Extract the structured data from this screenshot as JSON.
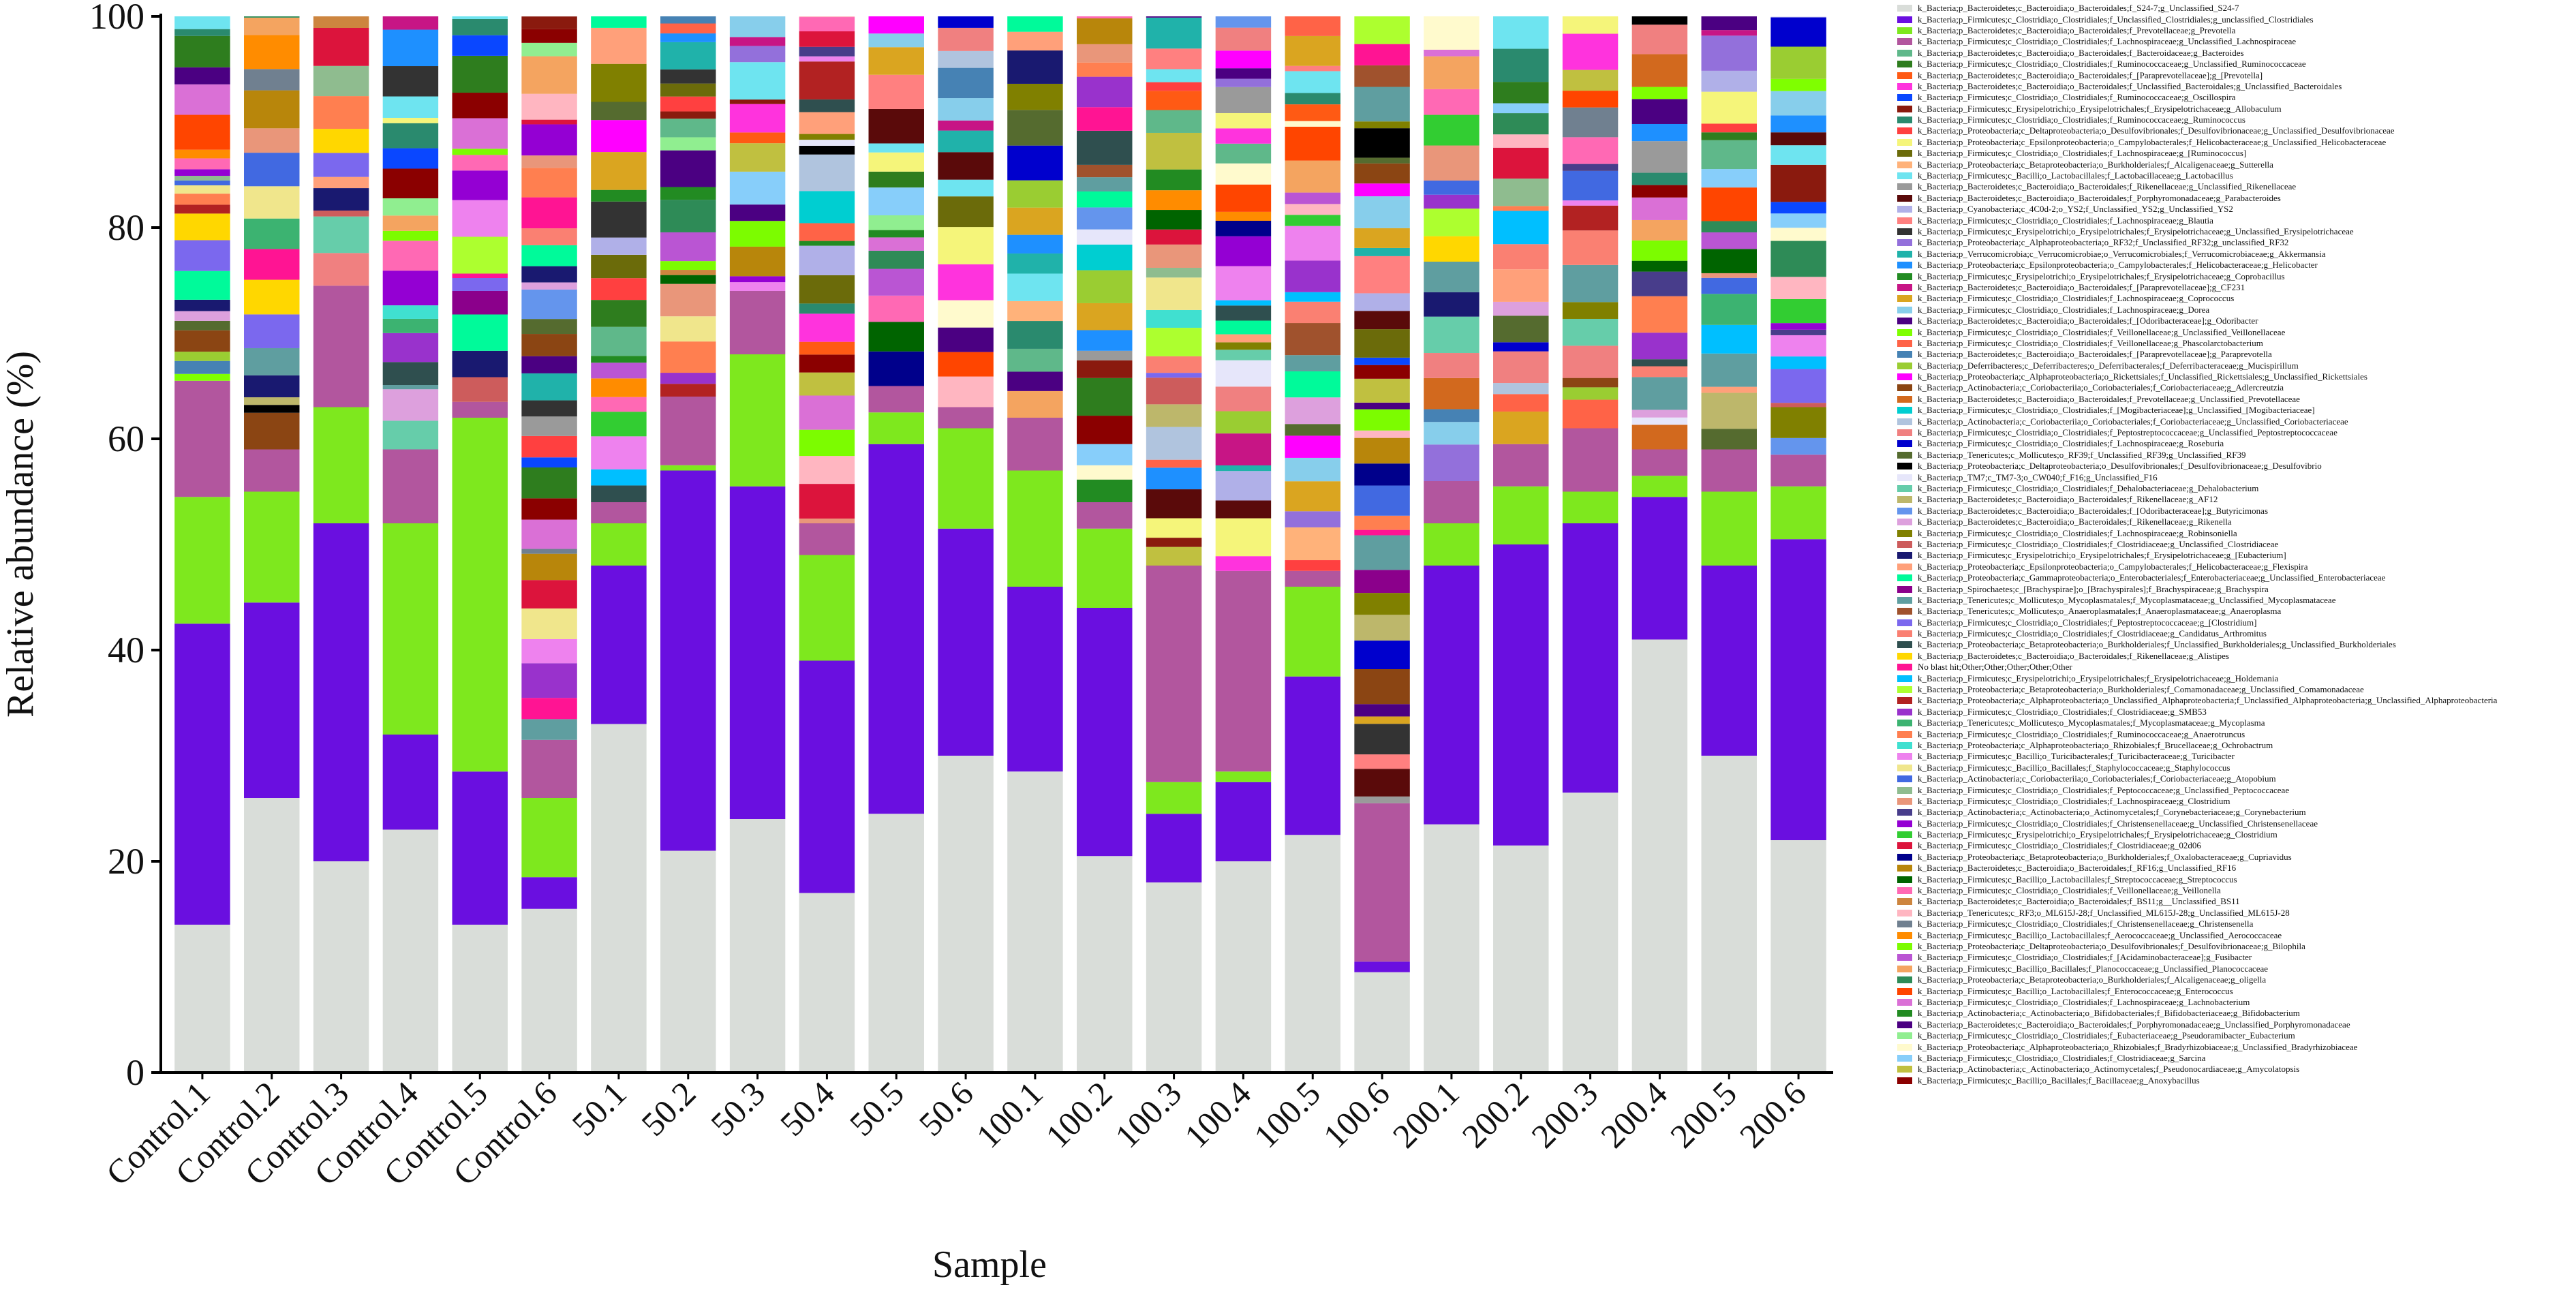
{
  "chart_data": {
    "type": "bar",
    "stacked": true,
    "xlabel": "Sample",
    "ylabel": "Relative abundance (%)",
    "ylim": [
      0,
      100
    ],
    "yticks": [
      0,
      20,
      40,
      60,
      80,
      100
    ],
    "categories": [
      "Control.1",
      "Control.2",
      "Control.3",
      "Control.4",
      "Control.5",
      "Control.6",
      "50.1",
      "50.2",
      "50.3",
      "50.4",
      "50.5",
      "50.6",
      "100.1",
      "100.2",
      "100.3",
      "100.4",
      "100.5",
      "100.6",
      "200.1",
      "200.2",
      "200.3",
      "200.4",
      "200.5",
      "200.6"
    ],
    "legend_position": "right",
    "major_series": [
      {
        "name": "k_Bacteria;p_Bacteroidetes;c_Bacteroidia;o_Bacteroidales;f_S24-7;g_Unclassified_S24-7",
        "color": "#d9ddd9",
        "values": [
          14,
          26,
          20,
          23,
          14,
          15.5,
          33,
          21,
          24,
          17,
          24.5,
          30,
          28.5,
          20.5,
          18,
          20,
          22.5,
          9.5,
          23.5,
          21.5,
          26.5,
          41,
          30,
          22
        ]
      },
      {
        "name": "k_Bacteria;p_Firmicutes;c_Clostridia;o_Clostridiales;f_Unclassified_Clostridiales;g_unclassified_Clostridiales",
        "color": "#6a0fe0",
        "values": [
          28.5,
          18.5,
          32,
          9,
          14.5,
          3,
          15,
          36,
          31.5,
          22,
          35,
          21.5,
          17.5,
          23.5,
          6.5,
          7.5,
          15,
          1,
          24.5,
          28.5,
          25.5,
          13.5,
          18,
          28.5
        ]
      },
      {
        "name": "k_Bacteria;p_Bacteroidetes;c_Bacteroidia;o_Bacteroidales;f_Prevotellaceae;g_Prevotella",
        "color": "#7ee81e",
        "values": [
          12,
          10.5,
          11,
          20,
          33.5,
          7.5,
          4,
          0.5,
          12.5,
          10,
          3,
          9.5,
          11,
          7.5,
          3,
          1,
          8.5,
          0,
          4,
          5.5,
          3,
          2,
          7,
          5
        ]
      },
      {
        "name": "k_Bacteria;p_Firmicutes;c_Clostridia;o_Clostridiales;f_Lachnospiraceae;g_Unclassified_Lachnospiraceae",
        "color": "#b2569e",
        "values": [
          11,
          4,
          11.5,
          7,
          1.5,
          5.5,
          2,
          6.5,
          6,
          3,
          2.5,
          2,
          5,
          2.5,
          20.5,
          19,
          1.5,
          15,
          4,
          4,
          6,
          2.5,
          4,
          3
        ]
      }
    ],
    "minor_series_note": "remaining taxa fill each bar to 100%",
    "legend_entries": [
      {
        "label": "k_Bacteria;p_Bacteroidetes;c_Bacteroidia;o_Bacteroidales;f_S24-7;g_Unclassified_S24-7",
        "color": "#d9ddd9"
      },
      {
        "label": "k_Bacteria;p_Firmicutes;c_Clostridia;o_Clostridiales;f_Unclassified_Clostridiales;g_unclassified_Clostridiales",
        "color": "#6a0fe0"
      },
      {
        "label": "k_Bacteria;p_Bacteroidetes;c_Bacteroidia;o_Bacteroidales;f_Prevotellaceae;g_Prevotella",
        "color": "#7ee81e"
      },
      {
        "label": "k_Bacteria;p_Firmicutes;c_Clostridia;o_Clostridiales;f_Lachnospiraceae;g_Unclassified_Lachnospiraceae",
        "color": "#b2569e"
      },
      {
        "label": "k_Bacteria;p_Bacteroidetes;c_Bacteroidia;o_Bacteroidales;f_Bacteroidaceae;g_Bacteroides",
        "color": "#5fb88a"
      },
      {
        "label": "k_Bacteria;p_Firmicutes;c_Clostridia;o_Clostridiales;f_Ruminococcaceae;g_Unclassified_Ruminococcaceae",
        "color": "#2e7d1e"
      },
      {
        "label": "k_Bacteria;p_Bacteroidetes;c_Bacteroidia;o_Bacteroidales;f_[Paraprevotellaceae];g_[Prevotella]",
        "color": "#ff5a14"
      },
      {
        "label": "k_Bacteria;p_Bacteroidetes;c_Bacteroidia;o_Bacteroidales;f_Unclassified_Bacteroidales;g_Unclassified_Bacteroidales",
        "color": "#ff33dd"
      },
      {
        "label": "k_Bacteria;p_Firmicutes;c_Clostridia;o_Clostridiales;f_Ruminococcaceae;g_Oscillospira",
        "color": "#0a47ff"
      },
      {
        "label": "k_Bacteria;p_Firmicutes;c_Erysipelotrichi;o_Erysipelotrichales;f_Erysipelotrichaceae;g_Allobaculum",
        "color": "#8a1a0e"
      },
      {
        "label": "k_Bacteria;p_Firmicutes;c_Clostridia;o_Clostridiales;f_Ruminococcaceae;g_Ruminococcus",
        "color": "#2a8a6e"
      },
      {
        "label": "k_Bacteria;p_Proteobacteria;c_Deltaproteobacteria;o_Desulfovibrionales;f_Desulfovibrionaceae;g_Unclassified_Desulfovibrionaceae",
        "color": "#ff4040"
      },
      {
        "label": "k_Bacteria;p_Proteobacteria;c_Epsilonproteobacteria;o_Campylobacterales;f_Helicobacteraceae;g_Unclassified_Helicobacteraceae",
        "color": "#f5f57a"
      },
      {
        "label": "k_Bacteria;p_Firmicutes;c_Clostridia;o_Clostridiales;f_Lachnospiraceae;g_[Ruminococcus]",
        "color": "#6b6b0a"
      },
      {
        "label": "k_Bacteria;p_Proteobacteria;c_Betaproteobacteria;o_Burkholderiales;f_Alcaligenaceae;g_Sutterella",
        "color": "#ffb27a"
      },
      {
        "label": "k_Bacteria;p_Firmicutes;c_Bacilli;o_Lactobacillales;f_Lactobacillaceae;g_Lactobacillus",
        "color": "#6ee4f0"
      },
      {
        "label": "k_Bacteria;p_Bacteroidetes;c_Bacteroidia;o_Bacteroidales;f_Rikenellaceae;g_Unclassified_Rikenellaceae",
        "color": "#9a9a9a"
      },
      {
        "label": "k_Bacteria;p_Bacteroidetes;c_Bacteroidia;o_Bacteroidales;f_Porphyromonadaceae;g_Parabacteroides",
        "color": "#5a0a0a"
      },
      {
        "label": "k_Bacteria;p_Cyanobacteria;c_4C0d-2;o_YS2;f_Unclassified_YS2;g_Unclassified_YS2",
        "color": "#b0b0e8"
      },
      {
        "label": "k_Bacteria;p_Firmicutes;c_Clostridia;o_Clostridiales;f_Lachnospiraceae;g_Blautia",
        "color": "#ff8080"
      },
      {
        "label": "k_Bacteria;p_Firmicutes;c_Erysipelotrichi;o_Erysipelotrichales;f_Erysipelotrichaceae;g_Unclassified_Erysipelotrichaceae",
        "color": "#333333"
      },
      {
        "label": "k_Bacteria;p_Proteobacteria;c_Alphaproteobacteria;o_RF32;f_Unclassified_RF32;g_unclassified_RF32",
        "color": "#9370db"
      },
      {
        "label": "k_Bacteria;p_Verrucomicrobia;c_Verrucomicrobiae;o_Verrucomicrobiales;f_Verrucomicrobiaceae;g_Akkermansia",
        "color": "#20b2aa"
      },
      {
        "label": "k_Bacteria;p_Proteobacteria;c_Epsilonproteobacteria;o_Campylobacterales;f_Helicobacteraceae;g_Helicobacter",
        "color": "#1e90ff"
      },
      {
        "label": "k_Bacteria;p_Firmicutes;c_Erysipelotrichi;o_Erysipelotrichales;f_Erysipelotrichaceae;g_Coprobacillus",
        "color": "#228b22"
      },
      {
        "label": "k_Bacteria;p_Bacteroidetes;c_Bacteroidia;o_Bacteroidales;f_[Paraprevotellaceae];g_CF231",
        "color": "#c71585"
      },
      {
        "label": "k_Bacteria;p_Firmicutes;c_Clostridia;o_Clostridiales;f_Lachnospiraceae;g_Coprococcus",
        "color": "#daa520"
      },
      {
        "label": "k_Bacteria;p_Firmicutes;c_Clostridia;o_Clostridiales;f_Lachnospiraceae;g_Dorea",
        "color": "#87ceeb"
      },
      {
        "label": "k_Bacteria;p_Bacteroidetes;c_Bacteroidia;o_Bacteroidales;f_[Odoribacteraceae];g_Odoribacter",
        "color": "#4b0082"
      },
      {
        "label": "k_Bacteria;p_Firmicutes;c_Clostridia;o_Clostridiales;f_Veillonellaceae;g_Unclassified_Veillonellaceae",
        "color": "#7fff00"
      },
      {
        "label": "k_Bacteria;p_Firmicutes;c_Clostridia;o_Clostridiales;f_Veillonellaceae;g_Phascolarctobacterium",
        "color": "#ff6347"
      },
      {
        "label": "k_Bacteria;p_Bacteroidetes;c_Bacteroidia;o_Bacteroidales;f_[Paraprevotellaceae];g_Paraprevotella",
        "color": "#4682b4"
      },
      {
        "label": "k_Bacteria;p_Deferribacteres;c_Deferribacteres;o_Deferribacterales;f_Deferribacteraceae;g_Mucispirillum",
        "color": "#9acd32"
      },
      {
        "label": "k_Bacteria;p_Proteobacteria;c_Alphaproteobacteria;o_Rickettsiales;f_Unclassified_Rickettsiales;g_Unclassified_Rickettsiales",
        "color": "#ff00ff"
      },
      {
        "label": "k_Bacteria;p_Actinobacteria;c_Coriobacteriia;o_Coriobacteriales;f_Coriobacteriaceae;g_Adlercreutzia",
        "color": "#8b4513"
      },
      {
        "label": "k_Bacteria;p_Bacteroidetes;c_Bacteroidia;o_Bacteroidales;f_Prevotellaceae;g_Unclassified_Prevotellaceae",
        "color": "#d2691e"
      },
      {
        "label": "k_Bacteria;p_Firmicutes;c_Clostridia;o_Clostridiales;f_[Mogibacteriaceae];g_Unclassified_[Mogibacteriaceae]",
        "color": "#00ced1"
      },
      {
        "label": "k_Bacteria;p_Actinobacteria;c_Coriobacteriia;o_Coriobacteriales;f_Coriobacteriaceae;g_Unclassified_Coriobacteriaceae",
        "color": "#b0c4de"
      },
      {
        "label": "k_Bacteria;p_Firmicutes;c_Clostridia;o_Clostridiales;f_Peptostreptococcaceae;g_Unclassified_Peptostreptococcaceae",
        "color": "#f08080"
      },
      {
        "label": "k_Bacteria;p_Firmicutes;c_Clostridia;o_Clostridiales;f_Lachnospiraceae;g_Roseburia",
        "color": "#0000cd"
      },
      {
        "label": "k_Bacteria;p_Tenericutes;c_Mollicutes;o_RF39;f_Unclassified_RF39;g_Unclassified_RF39",
        "color": "#556b2f"
      },
      {
        "label": "k_Bacteria;p_Proteobacteria;c_Deltaproteobacteria;o_Desulfovibrionales;f_Desulfovibrionaceae;g_Desulfovibrio",
        "color": "#000000"
      },
      {
        "label": "k_Bacteria;p_TM7;c_TM7-3;o_CW040;f_F16;g_Unclassified_F16",
        "color": "#e6e6fa"
      },
      {
        "label": "k_Bacteria;p_Firmicutes;c_Clostridia;o_Clostridiales;f_Dehalobacteriaceae;g_Dehalobacterium",
        "color": "#66cdaa"
      },
      {
        "label": "k_Bacteria;p_Bacteroidetes;c_Bacteroidia;o_Bacteroidales;f_Rikenellaceae;g_AF12",
        "color": "#bdb76b"
      },
      {
        "label": "k_Bacteria;p_Bacteroidetes;c_Bacteroidia;o_Bacteroidales;f_[Odoribacteraceae];g_Butyricimonas",
        "color": "#6495ed"
      },
      {
        "label": "k_Bacteria;p_Bacteroidetes;c_Bacteroidia;o_Bacteroidales;f_Rikenellaceae;g_Rikenella",
        "color": "#dda0dd"
      },
      {
        "label": "k_Bacteria;p_Firmicutes;c_Clostridia;o_Clostridiales;f_Lachnospiraceae;g_Robinsoniella",
        "color": "#808000"
      },
      {
        "label": "k_Bacteria;p_Firmicutes;c_Clostridia;o_Clostridiales;f_Clostridiaceae;g_Unclassified_Clostridiaceae",
        "color": "#cd5c5c"
      },
      {
        "label": "k_Bacteria;p_Firmicutes;c_Erysipelotrichi;o_Erysipelotrichales;f_Erysipelotrichaceae;g_[Eubacterium]",
        "color": "#191970"
      },
      {
        "label": "k_Bacteria;p_Proteobacteria;c_Epsilonproteobacteria;o_Campylobacterales;f_Helicobacteraceae;g_Flexispira",
        "color": "#ffa07a"
      },
      {
        "label": "k_Bacteria;p_Proteobacteria;c_Gammaproteobacteria;o_Enterobacteriales;f_Enterobacteriaceae;g_Unclassified_Enterobacteriaceae",
        "color": "#00fa9a"
      },
      {
        "label": "k_Bacteria;p_Spirochaetes;c_[Brachyspirae];o_[Brachyspirales];f_Brachyspiraceae;g_Brachyspira",
        "color": "#8b008b"
      },
      {
        "label": "k_Bacteria;p_Tenericutes;c_Mollicutes;o_Mycoplasmatales;f_Mycoplasmataceae;g_Unclassified_Mycoplasmataceae",
        "color": "#5f9ea0"
      },
      {
        "label": "k_Bacteria;p_Tenericutes;c_Mollicutes;o_Anaeroplasmatales;f_Anaeroplasmataceae;g_Anaeroplasma",
        "color": "#a0522d"
      },
      {
        "label": "k_Bacteria;p_Firmicutes;c_Clostridia;o_Clostridiales;f_Peptostreptococcaceae;g_[Clostridium]",
        "color": "#7b68ee"
      },
      {
        "label": "k_Bacteria;p_Firmicutes;c_Clostridia;o_Clostridiales;f_Clostridiaceae;g_Candidatus_Arthromitus",
        "color": "#fa8072"
      },
      {
        "label": "k_Bacteria;p_Proteobacteria;c_Betaproteobacteria;o_Burkholderiales;f_Unclassified_Burkholderiales;g_Unclassified_Burkholderiales",
        "color": "#2f4f4f"
      },
      {
        "label": "k_Bacteria;p_Bacteroidetes;c_Bacteroidia;o_Bacteroidales;f_Rikenellaceae;g_Alistipes",
        "color": "#ffd700"
      },
      {
        "label": "No blast hit;Other;Other;Other;Other;Other",
        "color": "#ff1493"
      },
      {
        "label": "k_Bacteria;p_Firmicutes;c_Erysipelotrichi;o_Erysipelotrichales;f_Erysipelotrichaceae;g_Holdemania",
        "color": "#00bfff"
      },
      {
        "label": "k_Bacteria;p_Proteobacteria;c_Betaproteobacteria;o_Burkholderiales;f_Comamonadaceae;g_Unclassified_Comamonadaceae",
        "color": "#adff2f"
      },
      {
        "label": "k_Bacteria;p_Proteobacteria;c_Alphaproteobacteria;o_Unclassified_Alphaproteobacteria;f_Unclassified_Alphaproteobacteria;g_Unclassified_Alphaproteobacteria",
        "color": "#b22222"
      },
      {
        "label": "k_Bacteria;p_Firmicutes;c_Clostridia;o_Clostridiales;f_Clostridiaceae;g_SMB53",
        "color": "#9932cc"
      },
      {
        "label": "k_Bacteria;p_Tenericutes;c_Mollicutes;o_Mycoplasmatales;f_Mycoplasmataceae;g_Mycoplasma",
        "color": "#3cb371"
      },
      {
        "label": "k_Bacteria;p_Firmicutes;c_Clostridia;o_Clostridiales;f_Ruminococcaceae;g_Anaerotruncus",
        "color": "#ff7f50"
      },
      {
        "label": "k_Bacteria;p_Proteobacteria;c_Alphaproteobacteria;o_Rhizobiales;f_Brucellaceae;g_Ochrobactrum",
        "color": "#40e0d0"
      },
      {
        "label": "k_Bacteria;p_Firmicutes;c_Bacilli;o_Turicibacterales;f_Turicibacteraceae;g_Turicibacter",
        "color": "#ee82ee"
      },
      {
        "label": "k_Bacteria;p_Firmicutes;c_Bacilli;o_Bacillales;f_Staphylococcaceae;g_Staphylococcus",
        "color": "#f0e68c"
      },
      {
        "label": "k_Bacteria;p_Actinobacteria;c_Coriobacteriia;o_Coriobacteriales;f_Coriobacteriaceae;g_Atopobium",
        "color": "#4169e1"
      },
      {
        "label": "k_Bacteria;p_Firmicutes;c_Clostridia;o_Clostridiales;f_Peptococcaceae;g_Unclassified_Peptococcaceae",
        "color": "#8fbc8f"
      },
      {
        "label": "k_Bacteria;p_Firmicutes;c_Clostridia;o_Clostridiales;f_Lachnospiraceae;g_Clostridium",
        "color": "#e9967a"
      },
      {
        "label": "k_Bacteria;p_Actinobacteria;c_Actinobacteria;o_Actinomycetales;f_Corynebacteriaceae;g_Corynebacterium",
        "color": "#483d8b"
      },
      {
        "label": "k_Bacteria;p_Firmicutes;c_Clostridia;o_Clostridiales;f_Christensenellaceae;g_Unclassified_Christensenellaceae",
        "color": "#9400d3"
      },
      {
        "label": "k_Bacteria;p_Firmicutes;c_Erysipelotrichi;o_Erysipelotrichales;f_Erysipelotrichaceae;g_Clostridium",
        "color": "#32cd32"
      },
      {
        "label": "k_Bacteria;p_Firmicutes;c_Clostridia;o_Clostridiales;f_Clostridiaceae;g_02d06",
        "color": "#dc143c"
      },
      {
        "label": "k_Bacteria;p_Proteobacteria;c_Betaproteobacteria;o_Burkholderiales;f_Oxalobacteraceae;g_Cupriavidus",
        "color": "#00008b"
      },
      {
        "label": "k_Bacteria;p_Bacteroidetes;c_Bacteroidia;o_Bacteroidales;f_RF16;g_Unclassified_RF16",
        "color": "#b8860b"
      },
      {
        "label": "k_Bacteria;p_Firmicutes;c_Bacilli;o_Lactobacillales;f_Streptococcaceae;g_Streptococcus",
        "color": "#006400"
      },
      {
        "label": "k_Bacteria;p_Firmicutes;c_Clostridia;o_Clostridiales;f_Veillonellaceae;g_Veillonella",
        "color": "#ff69b4"
      },
      {
        "label": "k_Bacteria;p_Bacteroidetes;c_Bacteroidia;o_Bacteroidales;f_BS11;g__Unclassified_BS11",
        "color": "#cd853f"
      },
      {
        "label": "k_Bacteria;p_Tenericutes;c_RF3;o_ML615J-28;f_Unclassified_ML615J-28;g_Unclassified_ML615J-28",
        "color": "#ffb6c1"
      },
      {
        "label": "k_Bacteria;p_Firmicutes;c_Clostridia;o_Clostridiales;f_Christensenellaceae;g_Christensenella",
        "color": "#708090"
      },
      {
        "label": "k_Bacteria;p_Firmicutes;c_Bacilli;o_Lactobacillales;f_Aerococcaceae;g_Unclassified_Aerococcaceae",
        "color": "#ff8c00"
      },
      {
        "label": "k_Bacteria;p_Proteobacteria;c_Deltaproteobacteria;o_Desulfovibrionales;f_Desulfovibrionaceae;g_Bilophila",
        "color": "#7cfc00"
      },
      {
        "label": "k_Bacteria;p_Firmicutes;c_Clostridia;o_Clostridiales;f_[Acidaminobacteraceae];g_Fusibacter",
        "color": "#ba55d3"
      },
      {
        "label": "k_Bacteria;p_Firmicutes;c_Bacilli;o_Bacillales;f_Planococcaceae;g_Unclassified_Planococcaceae",
        "color": "#f4a460"
      },
      {
        "label": "k_Bacteria;p_Proteobacteria;c_Betaproteobacteria;o_Burkholderiales;f_Alcaligenaceae;g_oligella",
        "color": "#2e8b57"
      },
      {
        "label": "k_Bacteria;p_Firmicutes;c_Bacilli;o_Lactobacillales;f_Enterococcaceae;g_Enterococcus",
        "color": "#ff4500"
      },
      {
        "label": "k_Bacteria;p_Firmicutes;c_Clostridia;o_Clostridiales;f_Lachnospiraceae;g_Lachnobacterium",
        "color": "#da70d6"
      },
      {
        "label": "k_Bacteria;p_Actinobacteria;c_Actinobacteria;o_Bifidobacteriales;f_Bifidobacteriaceae;g_Bifidobacterium",
        "color": "#228b22"
      },
      {
        "label": "k_Bacteria;p_Bacteroidetes;c_Bacteroidia;o_Bacteroidales;f_Porphyromonadaceae;g_Unclassified_Porphyromonadaceae",
        "color": "#4b0082"
      },
      {
        "label": "k_Bacteria;p_Firmicutes;c_Clostridia;o_Clostridiales;f_Eubacteriaceae;g_Pseudoramibacter_Eubacterium",
        "color": "#90ee90"
      },
      {
        "label": "k_Bacteria;p_Proteobacteria;c_Alphaproteobacteria;o_Rhizobiales;f_Bradyrhizobiaceae;g_Unclassified_Bradyrhizobiaceae",
        "color": "#fffacd"
      },
      {
        "label": "k_Bacteria;p_Firmicutes;c_Clostridia;o_Clostridiales;f_Clostridiaceae;g_Sarcina",
        "color": "#87cefa"
      },
      {
        "label": "k_Bacteria;p_Actinobacteria;c_Actinobacteria;o_Actinomycetales;f_Pseudonocardiaceae;g_Amycolatopsis",
        "color": "#c0c040"
      },
      {
        "label": "k_Bacteria;p_Firmicutes;c_Bacilli;o_Bacillales;f_Bacillaceae;g_Anoxybacillus",
        "color": "#8b0000"
      }
    ]
  }
}
